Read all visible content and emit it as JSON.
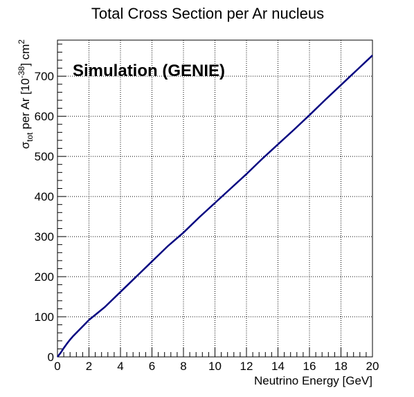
{
  "chart_data": {
    "type": "line",
    "title": "Total Cross Section per Ar nucleus",
    "annotation": "Simulation (GENIE)",
    "xlabel": "Neutrino Energy [GeV]",
    "ylabel": {
      "sigma": "σ",
      "sub": "tot",
      "mid": " per Ar [10",
      "sup1": "-38",
      "post": "] cm",
      "sup2": "2"
    },
    "xlim": [
      0,
      20
    ],
    "ylim": [
      0,
      790
    ],
    "xticks": [
      0,
      2,
      4,
      6,
      8,
      10,
      12,
      14,
      16,
      18,
      20
    ],
    "xtick_labels": [
      "0",
      "2",
      "4",
      "6",
      "8",
      "10",
      "12",
      "14",
      "16",
      "18",
      "20"
    ],
    "yticks": [
      0,
      100,
      200,
      300,
      400,
      500,
      600,
      700
    ],
    "ytick_labels": [
      "0",
      "100",
      "200",
      "300",
      "400",
      "500",
      "600",
      "700"
    ],
    "grid": true,
    "line_color": "#000080",
    "series": [
      {
        "x": [
          0.0,
          0.2,
          0.4,
          0.6,
          0.8,
          1.0,
          1.5,
          2.0,
          2.5,
          3.0,
          4.0,
          5.0,
          6.0,
          7.0,
          8.0,
          9.0,
          10.0,
          11.0,
          12.0,
          13.0,
          14.0,
          15.0,
          16.0,
          17.0,
          18.0,
          19.0,
          20.0
        ],
        "y": [
          0,
          10,
          22,
          33,
          43,
          52,
          72,
          92,
          108,
          124,
          162,
          200,
          238,
          276,
          310,
          348,
          384,
          420,
          456,
          494,
          530,
          566,
          603,
          641,
          678,
          715,
          752
        ]
      }
    ]
  }
}
